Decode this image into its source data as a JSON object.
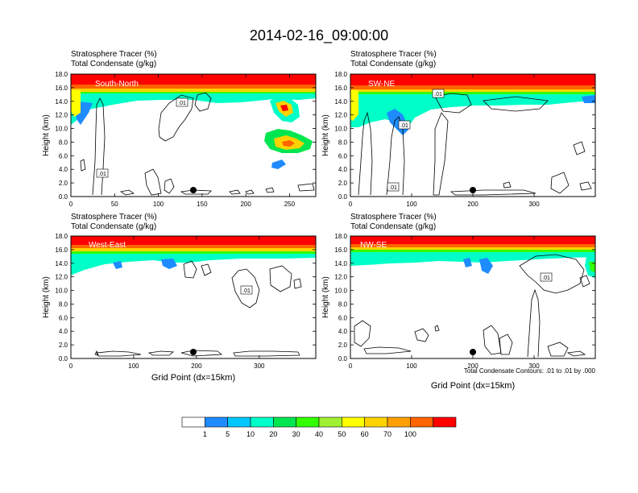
{
  "figure": {
    "title": "2014-02-16_09:00:00",
    "footnote": "Total Condensate Contours: .01 to .01 by .000"
  },
  "colorbar": {
    "colors": [
      "#ffffff",
      "#1e8cff",
      "#00c8ff",
      "#00ffc8",
      "#00e650",
      "#32ff00",
      "#a0f032",
      "#ffff00",
      "#ffd200",
      "#ffa000",
      "#ff6400",
      "#ff0000"
    ],
    "labels": [
      "1",
      "5",
      "10",
      "20",
      "30",
      "40",
      "50",
      "60",
      "70",
      "100"
    ]
  },
  "chart_data": [
    {
      "type": "heatmap",
      "panel": "top-left",
      "annotation": "South-North",
      "header_line1": "Stratosphere Tracer   (%)",
      "header_line2": "Total Condensate   (g/kg)",
      "ylabel": "Height (km)",
      "xlabel": "",
      "xlim": [
        0,
        280
      ],
      "ylim": [
        0,
        18
      ],
      "xticks": [
        "0",
        "50",
        "100",
        "150",
        "200",
        "250"
      ],
      "yticks": [
        "0.0",
        "2.0",
        "4.0",
        "6.0",
        "8.0",
        "10.0",
        "12.0",
        "14.0",
        "16.0",
        "18.0"
      ],
      "contour_labels": [
        ".01",
        ".01"
      ],
      "marker": {
        "x": 140,
        "y": 1.0
      }
    },
    {
      "type": "heatmap",
      "panel": "top-right",
      "annotation": "SW-NE",
      "header_line1": "Stratosphere Tracer   (%)",
      "header_line2": "Total Condensate   (g/kg)",
      "ylabel": "Height (km)",
      "xlabel": "",
      "xlim": [
        0,
        400
      ],
      "ylim": [
        0,
        18
      ],
      "xticks": [
        "0",
        "100",
        "200",
        "300"
      ],
      "yticks": [
        "0.0",
        "2.0",
        "4.0",
        "6.0",
        "8.0",
        "10.0",
        "12.0",
        "14.0",
        "16.0",
        "18.0"
      ],
      "contour_labels": [
        ".01",
        ".01",
        ".01"
      ],
      "marker": {
        "x": 200,
        "y": 1.0
      }
    },
    {
      "type": "heatmap",
      "panel": "bottom-left",
      "annotation": "West-East",
      "header_line1": "Stratosphere Tracer   (%)",
      "header_line2": "Total Condensate   (g/kg)",
      "ylabel": "Height (km)",
      "xlabel": "Grid Point (dx=15km)",
      "xlim": [
        0,
        390
      ],
      "ylim": [
        0,
        18
      ],
      "xticks": [
        "0",
        "100",
        "200",
        "300"
      ],
      "yticks": [
        "0.0",
        "2.0",
        "4.0",
        "6.0",
        "8.0",
        "10.0",
        "12.0",
        "14.0",
        "16.0",
        "18.0"
      ],
      "contour_labels": [
        ".01"
      ],
      "marker": {
        "x": 195,
        "y": 1.0
      }
    },
    {
      "type": "heatmap",
      "panel": "bottom-right",
      "annotation": "NW-SE",
      "header_line1": "Stratosphere Tracer   (%)",
      "header_line2": "Total Condensate   (g/kg)",
      "ylabel": "Height (km)",
      "xlabel": "Grid Point (dx=15km)",
      "xlim": [
        0,
        400
      ],
      "ylim": [
        0,
        18
      ],
      "xticks": [
        "0",
        "100",
        "200",
        "300"
      ],
      "yticks": [
        "0.0",
        "2.0",
        "4.0",
        "6.0",
        "8.0",
        "10.0",
        "12.0",
        "14.0",
        "16.0",
        "18.0"
      ],
      "contour_labels": [
        ".01"
      ],
      "marker": {
        "x": 200,
        "y": 1.0
      }
    }
  ]
}
